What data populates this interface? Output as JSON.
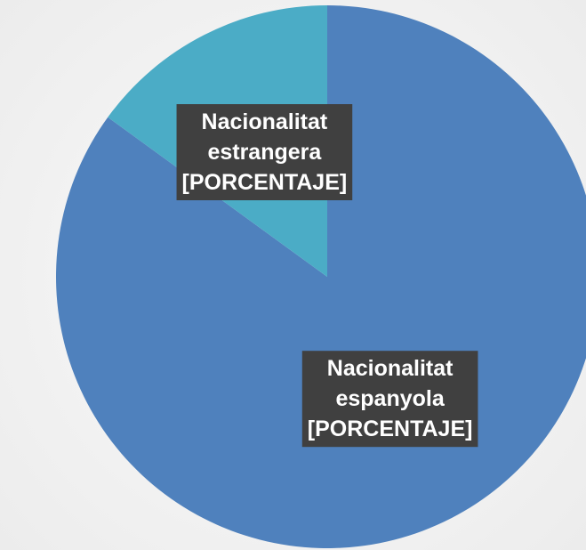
{
  "chart_data": {
    "type": "pie",
    "categories": [
      "Nacionalitat espanyola",
      "Nacionalitat estrangera"
    ],
    "category_lines": [
      [
        "Nacionalitat",
        "espanyola"
      ],
      [
        "Nacionalitat",
        "estrangera"
      ]
    ],
    "values": [
      85,
      15
    ],
    "data_labels": [
      "[PORCENTAJE]",
      "[PORCENTAJE]"
    ],
    "colors": [
      "#4f81bd",
      "#4bacc6"
    ]
  }
}
